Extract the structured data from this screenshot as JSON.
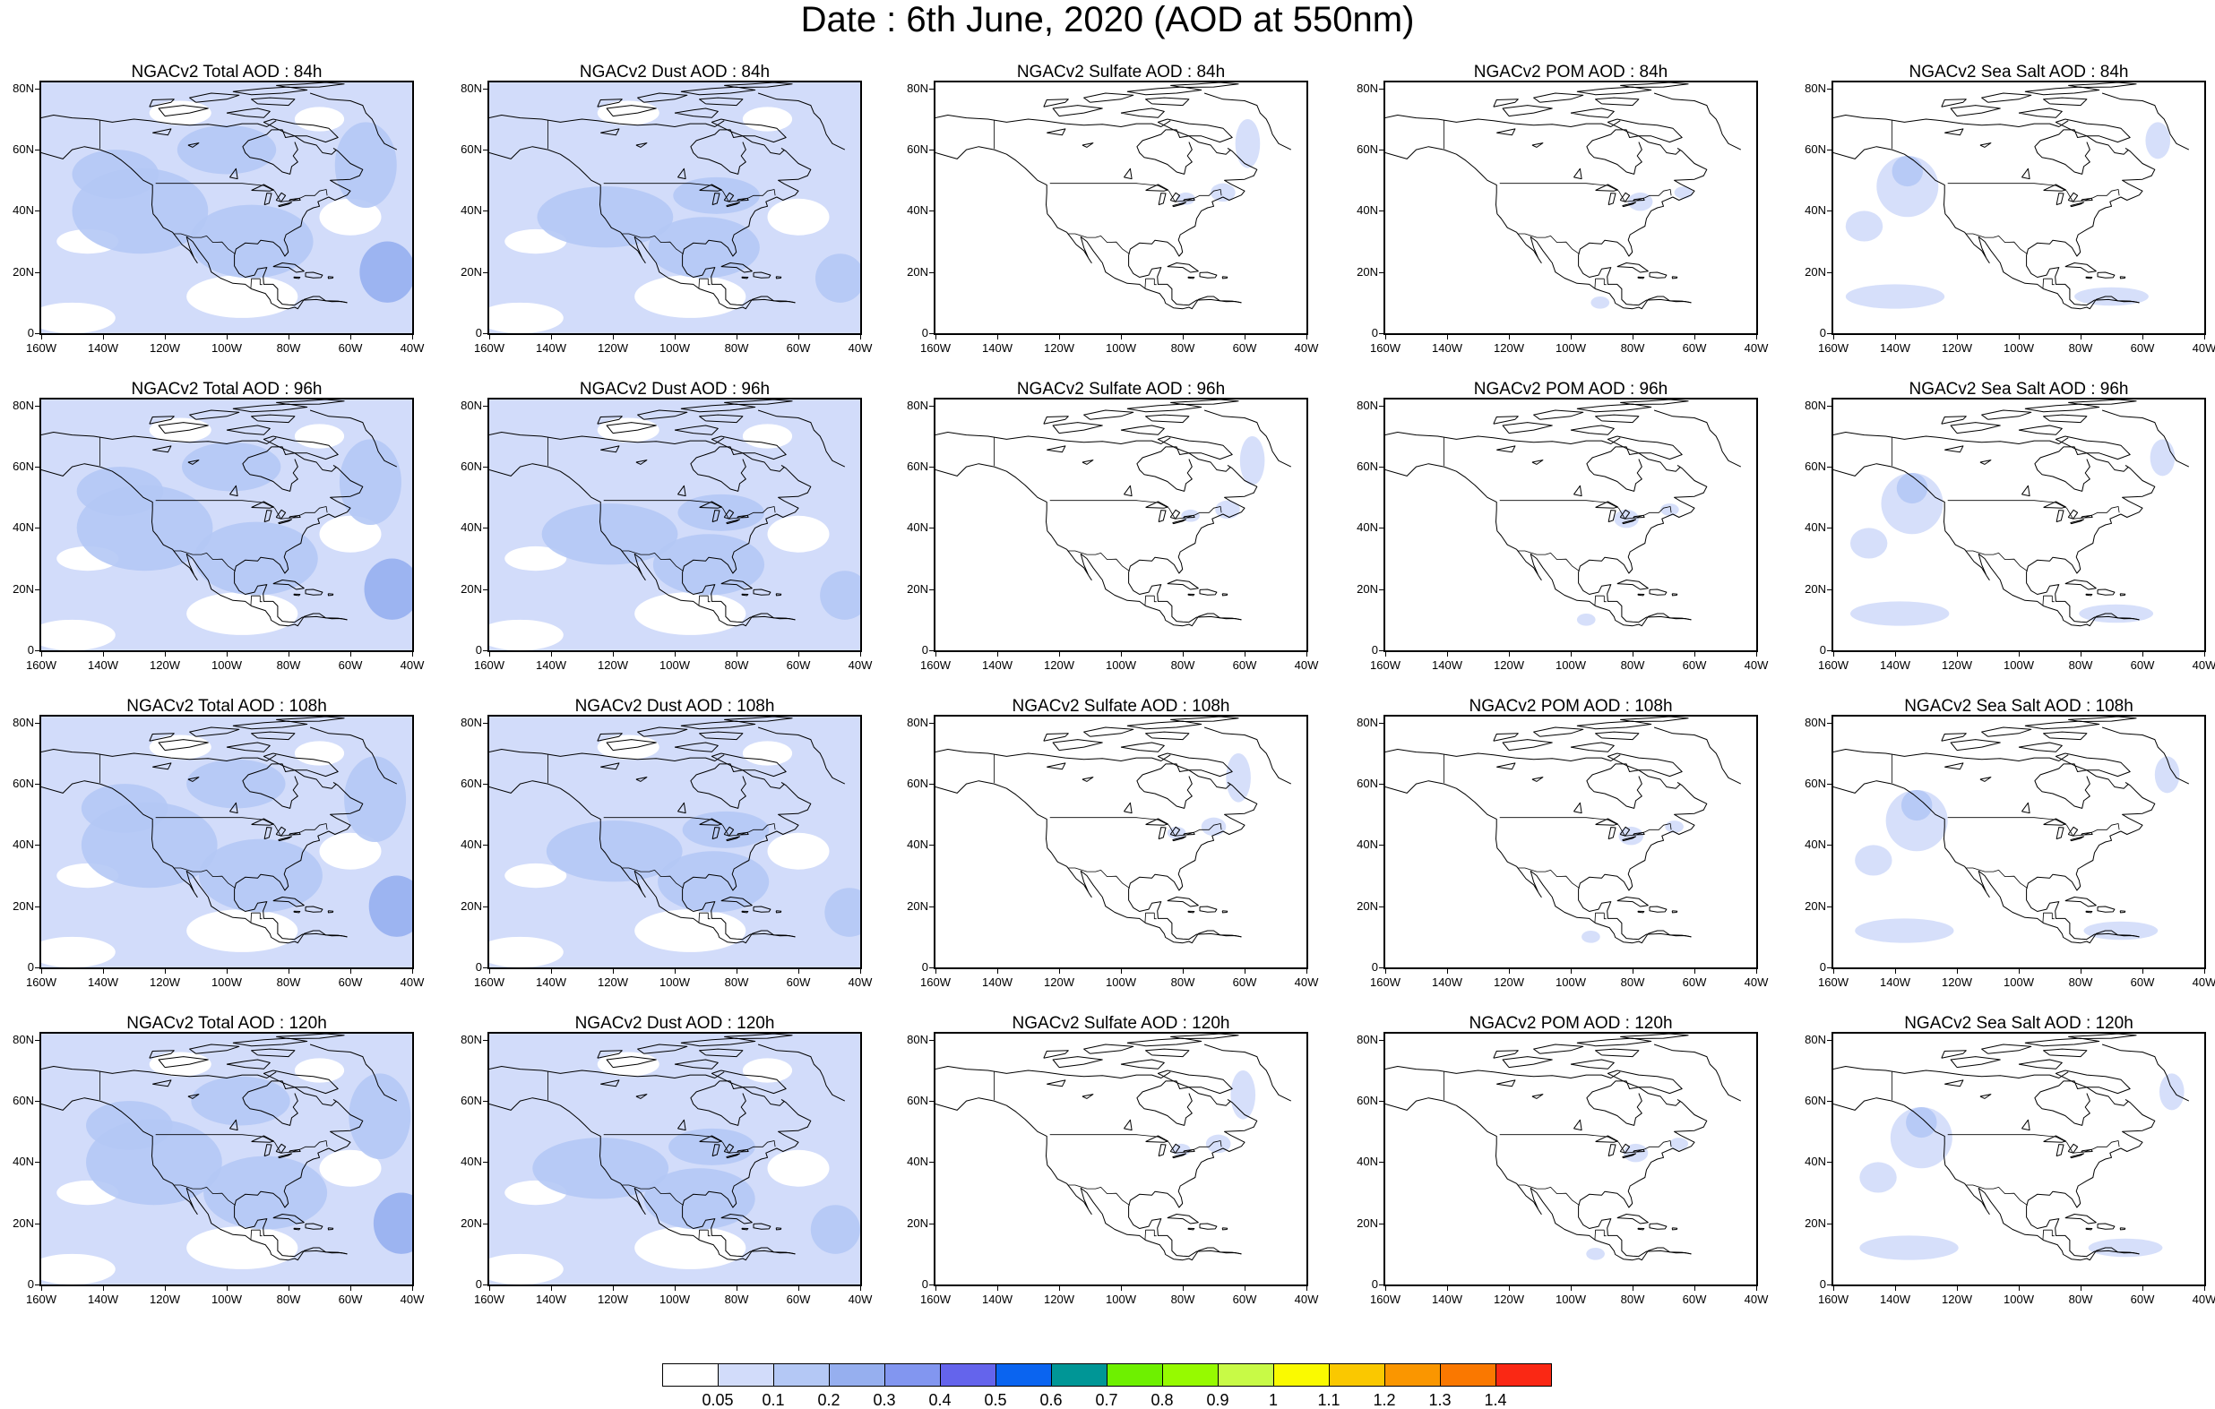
{
  "title": "Date : 6th June, 2020 (AOD at 550nm)",
  "lat_labels": [
    "80N",
    "60N",
    "40N",
    "20N",
    "0"
  ],
  "lon_labels": [
    "160W",
    "140W",
    "120W",
    "100W",
    "80W",
    "60W",
    "40W"
  ],
  "panels": [
    {
      "title": "NGACv2 Total AOD : 84h",
      "species": "total",
      "hour": "84h"
    },
    {
      "title": "NGACv2 Dust AOD : 84h",
      "species": "dust",
      "hour": "84h"
    },
    {
      "title": "NGACv2 Sulfate AOD : 84h",
      "species": "sulfate",
      "hour": "84h"
    },
    {
      "title": "NGACv2 POM AOD : 84h",
      "species": "pom",
      "hour": "84h"
    },
    {
      "title": "NGACv2 Sea Salt AOD : 84h",
      "species": "seasalt",
      "hour": "84h"
    },
    {
      "title": "NGACv2 Total AOD : 96h",
      "species": "total",
      "hour": "96h"
    },
    {
      "title": "NGACv2 Dust AOD : 96h",
      "species": "dust",
      "hour": "96h"
    },
    {
      "title": "NGACv2 Sulfate AOD : 96h",
      "species": "sulfate",
      "hour": "96h"
    },
    {
      "title": "NGACv2 POM AOD : 96h",
      "species": "pom",
      "hour": "96h"
    },
    {
      "title": "NGACv2 Sea Salt AOD : 96h",
      "species": "seasalt",
      "hour": "96h"
    },
    {
      "title": "NGACv2 Total AOD : 108h",
      "species": "total",
      "hour": "108h"
    },
    {
      "title": "NGACv2 Dust AOD : 108h",
      "species": "dust",
      "hour": "108h"
    },
    {
      "title": "NGACv2 Sulfate AOD : 108h",
      "species": "sulfate",
      "hour": "108h"
    },
    {
      "title": "NGACv2 POM AOD : 108h",
      "species": "pom",
      "hour": "108h"
    },
    {
      "title": "NGACv2 Sea Salt AOD : 108h",
      "species": "seasalt",
      "hour": "108h"
    },
    {
      "title": "NGACv2 Total AOD : 120h",
      "species": "total",
      "hour": "120h"
    },
    {
      "title": "NGACv2 Dust AOD : 120h",
      "species": "dust",
      "hour": "120h"
    },
    {
      "title": "NGACv2 Sulfate AOD : 120h",
      "species": "sulfate",
      "hour": "120h"
    },
    {
      "title": "NGACv2 POM AOD : 120h",
      "species": "pom",
      "hour": "120h"
    },
    {
      "title": "NGACv2 Sea Salt  AOD : 120h",
      "species": "seasalt",
      "hour": "120h"
    }
  ],
  "colorbar": {
    "colors": [
      "#ffffff",
      "#d2dcfa",
      "#b4c8f5",
      "#96afef",
      "#8296f0",
      "#6464ec",
      "#0a64f0",
      "#009696",
      "#6ef000",
      "#96fa00",
      "#c8fa46",
      "#fafa00",
      "#fac800",
      "#fa9600",
      "#fa7800",
      "#fa2814"
    ],
    "labels": [
      "0.05",
      "0.1",
      "0.2",
      "0.3",
      "0.4",
      "0.5",
      "0.6",
      "0.7",
      "0.8",
      "0.9",
      "1",
      "1.1",
      "1.2",
      "1.3",
      "1.4"
    ]
  }
}
